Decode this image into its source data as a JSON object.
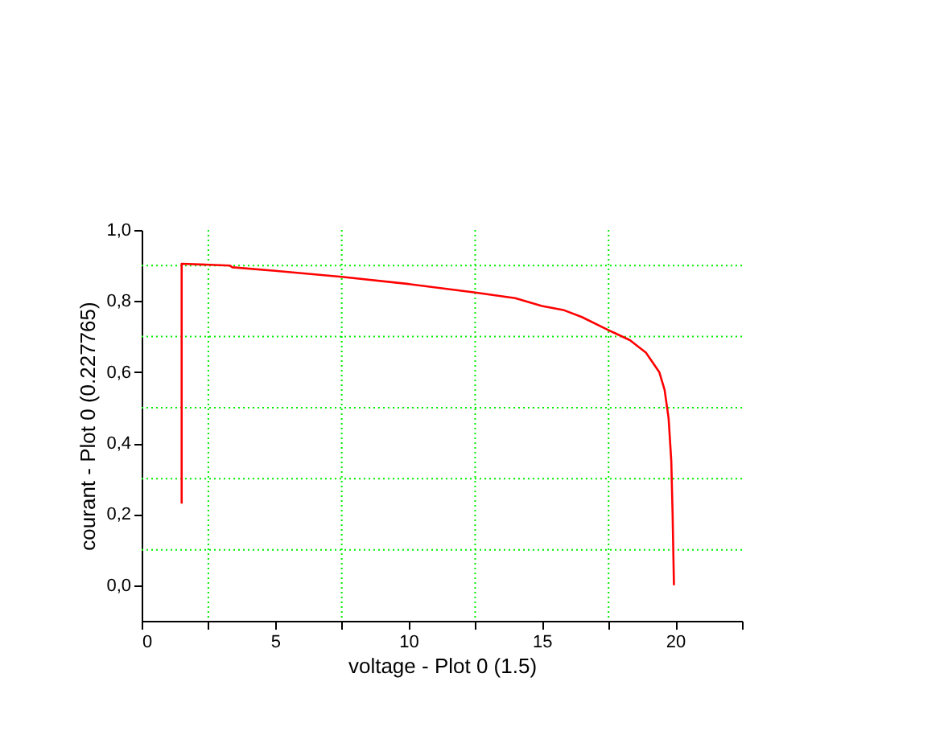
{
  "chart_data": {
    "type": "line",
    "xlabel": "voltage - Plot 0 (1.5)",
    "ylabel": "courant - Plot 0 (0.227765)",
    "xlim": [
      0,
      22.5
    ],
    "ylim": [
      -0.1,
      1.0
    ],
    "xticks": [
      0,
      {
        "value": 2.5,
        "label": null
      },
      5,
      {
        "value": 7.5,
        "label": null
      },
      10,
      {
        "value": 12.5,
        "label": null
      },
      15,
      {
        "value": 17.5,
        "label": null
      },
      20,
      {
        "value": 22.5,
        "label": null
      }
    ],
    "yticks": [
      {
        "value": 0,
        "label": "0,0"
      },
      {
        "value": 0.1,
        "label": null
      },
      {
        "value": 0.2,
        "label": "0,2"
      },
      {
        "value": 0.3,
        "label": null
      },
      {
        "value": 0.4,
        "label": "0,4"
      },
      {
        "value": 0.5,
        "label": null
      },
      {
        "value": 0.6,
        "label": "0,6"
      },
      {
        "value": 0.7,
        "label": null
      },
      {
        "value": 0.8,
        "label": "0,8"
      },
      {
        "value": 0.9,
        "label": null
      },
      {
        "value": 1.0,
        "label": "1,0"
      }
    ],
    "marker": "none",
    "line_style": "solid",
    "series": [
      {
        "color": "#ff0000",
        "x": [
          1.5,
          1.5,
          3.3,
          3.4,
          5,
          7.5,
          10,
          12.5,
          14,
          15,
          15.8,
          16.5,
          17.5,
          18.3,
          18.9,
          19.4,
          19.6,
          19.75,
          19.85,
          19.9,
          19.95
        ],
        "values": [
          0.23,
          0.905,
          0.9,
          0.895,
          0.885,
          0.868,
          0.848,
          0.824,
          0.808,
          0.786,
          0.775,
          0.755,
          0.718,
          0.69,
          0.655,
          0.6,
          0.55,
          0.47,
          0.35,
          0.2,
          0.0
        ]
      }
    ],
    "ref_lines": [
      {
        "axis": "x",
        "value": 2.5,
        "color": "#00ee00",
        "line_style": "dotted"
      },
      {
        "axis": "x",
        "value": 7.5,
        "color": "#00ee00",
        "line_style": "dotted"
      },
      {
        "axis": "x",
        "value": 12.5,
        "color": "#00ee00",
        "line_style": "dotted"
      },
      {
        "axis": "x",
        "value": 17.5,
        "color": "#00ee00",
        "line_style": "dotted"
      },
      {
        "axis": "y",
        "value": 0.1,
        "color": "#00ee00",
        "line_style": "dotted"
      },
      {
        "axis": "y",
        "value": 0.3,
        "color": "#00ee00",
        "line_style": "dotted"
      },
      {
        "axis": "y",
        "value": 0.5,
        "color": "#00ee00",
        "line_style": "dotted"
      },
      {
        "axis": "y",
        "value": 0.7,
        "color": "#00ee00",
        "line_style": "dotted"
      },
      {
        "axis": "y",
        "value": 0.9,
        "color": "#00ee00",
        "line_style": "dotted"
      }
    ]
  }
}
